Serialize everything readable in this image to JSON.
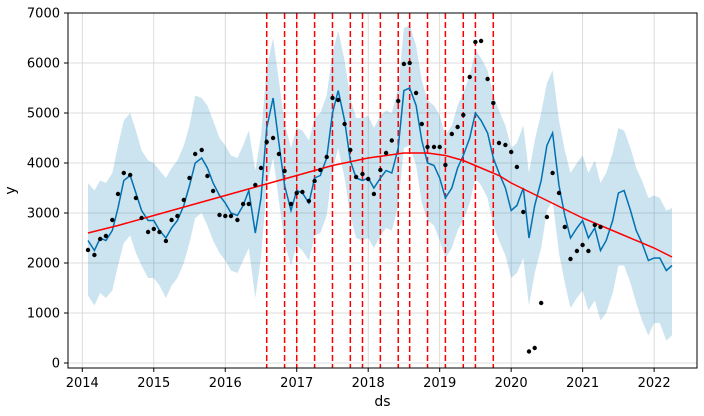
{
  "chart_data": {
    "type": "line",
    "title": "",
    "xlabel": "ds",
    "ylabel": "y",
    "xlim": [
      2013.8,
      2022.6
    ],
    "ylim": [
      -100,
      7000
    ],
    "grid": true,
    "x_ticks": [
      2014,
      2015,
      2016,
      2017,
      2018,
      2019,
      2020,
      2021,
      2022
    ],
    "x_tick_labels": [
      "2014",
      "2015",
      "2016",
      "2017",
      "2018",
      "2019",
      "2020",
      "2021",
      "2022"
    ],
    "y_ticks": [
      0,
      1000,
      2000,
      3000,
      4000,
      5000,
      6000,
      7000
    ],
    "y_tick_labels": [
      "0",
      "1000",
      "2000",
      "3000",
      "4000",
      "5000",
      "6000",
      "7000"
    ],
    "colors": {
      "forecast_line": "#0072b2",
      "uncertainty_band": "#0072b2",
      "trend_line": "#ff0000",
      "changepoints": "#ff0000",
      "observed_points": "#000000",
      "grid": "#d3d3d3"
    },
    "series": [
      {
        "role": "observed",
        "style": "points",
        "x": [
          2014.08,
          2014.17,
          2014.25,
          2014.33,
          2014.42,
          2014.5,
          2014.58,
          2014.67,
          2014.75,
          2014.83,
          2014.92,
          2015.0,
          2015.08,
          2015.17,
          2015.25,
          2015.33,
          2015.42,
          2015.5,
          2015.58,
          2015.67,
          2015.75,
          2015.83,
          2015.92,
          2016.0,
          2016.08,
          2016.17,
          2016.25,
          2016.33,
          2016.42,
          2016.5,
          2016.58,
          2016.67,
          2016.75,
          2016.83,
          2016.92,
          2017.0,
          2017.08,
          2017.17,
          2017.25,
          2017.33,
          2017.42,
          2017.5,
          2017.58,
          2017.67,
          2017.75,
          2017.83,
          2017.92,
          2018.0,
          2018.08,
          2018.17,
          2018.25,
          2018.33,
          2018.42,
          2018.5,
          2018.58,
          2018.67,
          2018.75,
          2018.83,
          2018.92,
          2019.0,
          2019.08,
          2019.17,
          2019.25,
          2019.33,
          2019.42,
          2019.5,
          2019.58,
          2019.67,
          2019.75,
          2019.83,
          2019.92,
          2020.0,
          2020.08,
          2020.17,
          2020.25,
          2020.33,
          2020.42,
          2020.5,
          2020.58,
          2020.67,
          2020.75,
          2020.83,
          2020.92,
          2021.0,
          2021.08,
          2021.17,
          2021.25
        ],
        "y": [
          2260,
          2160,
          2480,
          2540,
          2860,
          3380,
          3800,
          3760,
          3300,
          2900,
          2620,
          2680,
          2620,
          2440,
          2860,
          2940,
          3260,
          3700,
          4180,
          4260,
          3740,
          3440,
          2960,
          2940,
          2940,
          2860,
          3180,
          3180,
          3560,
          3900,
          4420,
          4500,
          4180,
          3840,
          3180,
          3400,
          3420,
          3240,
          3640,
          3860,
          4120,
          5300,
          5260,
          4780,
          4260,
          3720,
          3780,
          3680,
          3380,
          3860,
          4200,
          4450,
          5240,
          5980,
          6000,
          5400,
          4780,
          4320,
          4320,
          4320,
          3960,
          4580,
          4720,
          4960,
          5720,
          6420,
          6440,
          5680,
          5200,
          4400,
          4360,
          4220,
          3920,
          3020,
          230,
          300,
          1200,
          2920,
          3800,
          3400,
          2720,
          2080,
          2240,
          2360,
          2240,
          2760,
          2720
        ]
      },
      {
        "role": "forecast",
        "style": "line",
        "x": [
          2014.08,
          2014.17,
          2014.25,
          2014.33,
          2014.42,
          2014.5,
          2014.58,
          2014.67,
          2014.75,
          2014.83,
          2014.92,
          2015.0,
          2015.08,
          2015.17,
          2015.25,
          2015.33,
          2015.42,
          2015.5,
          2015.58,
          2015.67,
          2015.75,
          2015.83,
          2015.92,
          2016.0,
          2016.08,
          2016.17,
          2016.25,
          2016.33,
          2016.42,
          2016.5,
          2016.58,
          2016.67,
          2016.75,
          2016.83,
          2016.92,
          2017.0,
          2017.08,
          2017.17,
          2017.25,
          2017.33,
          2017.42,
          2017.5,
          2017.58,
          2017.67,
          2017.75,
          2017.83,
          2017.92,
          2018.0,
          2018.08,
          2018.17,
          2018.25,
          2018.33,
          2018.42,
          2018.5,
          2018.58,
          2018.67,
          2018.75,
          2018.83,
          2018.92,
          2019.0,
          2019.08,
          2019.17,
          2019.25,
          2019.33,
          2019.42,
          2019.5,
          2019.58,
          2019.67,
          2019.75,
          2019.83,
          2019.92,
          2020.0,
          2020.08,
          2020.17,
          2020.25,
          2020.33,
          2020.42,
          2020.5,
          2020.58,
          2020.67,
          2020.75,
          2020.83,
          2020.92,
          2021.0,
          2021.08,
          2021.17,
          2021.25,
          2021.33,
          2021.42,
          2021.5,
          2021.58,
          2021.67,
          2021.75,
          2021.83,
          2021.92,
          2022.0,
          2022.08,
          2022.17,
          2022.25
        ],
        "y": [
          2450,
          2250,
          2500,
          2450,
          2650,
          3100,
          3650,
          3750,
          3400,
          3050,
          2850,
          2850,
          2650,
          2500,
          2700,
          2850,
          3150,
          3550,
          4000,
          4100,
          3900,
          3600,
          3350,
          3200,
          3000,
          2950,
          3150,
          3450,
          2600,
          3300,
          4700,
          5300,
          4400,
          3550,
          3050,
          3450,
          3400,
          3200,
          3700,
          3750,
          4100,
          5000,
          5450,
          4850,
          4050,
          3700,
          3650,
          3700,
          3500,
          3700,
          3850,
          3800,
          4300,
          5450,
          5500,
          5150,
          4450,
          4000,
          3950,
          3700,
          3300,
          3500,
          3900,
          4150,
          4500,
          5000,
          4850,
          4600,
          4100,
          3800,
          3500,
          3050,
          3150,
          3500,
          2500,
          3150,
          3650,
          4350,
          4600,
          3550,
          2950,
          2500,
          2700,
          2850,
          2500,
          2700,
          2250,
          2450,
          2850,
          3400,
          3450,
          3050,
          2650,
          2400,
          2050,
          2100,
          2100,
          1850,
          1950
        ]
      },
      {
        "role": "trend",
        "style": "line",
        "x": [
          2014.08,
          2014.5,
          2015.0,
          2015.5,
          2016.0,
          2016.5,
          2017.0,
          2017.5,
          2018.0,
          2018.5,
          2018.83,
          2019.08,
          2019.33,
          2019.58,
          2019.83,
          2020.0,
          2020.5,
          2021.0,
          2021.5,
          2022.0,
          2022.25
        ],
        "y": [
          2600,
          2750,
          2950,
          3150,
          3350,
          3550,
          3750,
          3950,
          4100,
          4200,
          4200,
          4150,
          4050,
          3900,
          3750,
          3600,
          3250,
          2900,
          2600,
          2300,
          2120
        ]
      },
      {
        "role": "uncertainty",
        "style": "band",
        "x": [
          2014.08,
          2014.17,
          2014.25,
          2014.33,
          2014.42,
          2014.5,
          2014.58,
          2014.67,
          2014.75,
          2014.83,
          2014.92,
          2015.0,
          2015.08,
          2015.17,
          2015.25,
          2015.33,
          2015.42,
          2015.5,
          2015.58,
          2015.67,
          2015.75,
          2015.83,
          2015.92,
          2016.0,
          2016.08,
          2016.17,
          2016.25,
          2016.33,
          2016.42,
          2016.5,
          2016.58,
          2016.67,
          2016.75,
          2016.83,
          2016.92,
          2017.0,
          2017.08,
          2017.17,
          2017.25,
          2017.33,
          2017.42,
          2017.5,
          2017.58,
          2017.67,
          2017.75,
          2017.83,
          2017.92,
          2018.0,
          2018.08,
          2018.17,
          2018.25,
          2018.33,
          2018.42,
          2018.5,
          2018.58,
          2018.67,
          2018.75,
          2018.83,
          2018.92,
          2019.0,
          2019.08,
          2019.17,
          2019.25,
          2019.33,
          2019.42,
          2019.5,
          2019.58,
          2019.67,
          2019.75,
          2019.83,
          2019.92,
          2020.0,
          2020.08,
          2020.17,
          2020.25,
          2020.33,
          2020.42,
          2020.5,
          2020.58,
          2020.67,
          2020.75,
          2020.83,
          2020.92,
          2021.0,
          2021.08,
          2021.17,
          2021.25,
          2021.33,
          2021.42,
          2021.5,
          2021.58,
          2021.67,
          2021.75,
          2021.83,
          2021.92,
          2022.0,
          2022.08,
          2022.17,
          2022.25
        ],
        "upper": [
          3600,
          3450,
          3650,
          3600,
          3800,
          4350,
          4850,
          5000,
          4650,
          4250,
          4050,
          4000,
          3850,
          3700,
          3900,
          4050,
          4350,
          4750,
          5350,
          5300,
          5150,
          4850,
          4500,
          4350,
          4150,
          4100,
          4350,
          4650,
          3850,
          4550,
          5900,
          6500,
          5650,
          4800,
          4300,
          4700,
          4650,
          4450,
          4900,
          5000,
          5350,
          6200,
          6650,
          6050,
          5300,
          4900,
          4900,
          4950,
          4700,
          4950,
          5050,
          5000,
          5500,
          6700,
          6750,
          6350,
          5650,
          5250,
          5150,
          4950,
          4550,
          4750,
          5150,
          5400,
          5750,
          6250,
          6100,
          5850,
          5350,
          5050,
          4750,
          4300,
          4400,
          4750,
          3800,
          4450,
          5000,
          5600,
          5850,
          4850,
          4250,
          3800,
          4000,
          4150,
          3800,
          4050,
          3600,
          3800,
          4200,
          4700,
          4650,
          4300,
          3900,
          3650,
          3300,
          3350,
          3300,
          3050,
          3100
        ],
        "lower": [
          1350,
          1150,
          1400,
          1300,
          1450,
          1950,
          2400,
          2550,
          2200,
          1950,
          1700,
          1700,
          1550,
          1300,
          1550,
          1700,
          2000,
          2400,
          2900,
          3000,
          2750,
          2450,
          2200,
          2050,
          1850,
          1800,
          2050,
          2300,
          1300,
          2100,
          3550,
          4100,
          3250,
          2400,
          1950,
          2350,
          2250,
          2050,
          2550,
          2600,
          2950,
          3850,
          4300,
          3700,
          2950,
          2500,
          2450,
          2500,
          2300,
          2550,
          2700,
          2650,
          3150,
          4300,
          4350,
          3950,
          3200,
          2850,
          2750,
          2450,
          2100,
          2300,
          2650,
          2850,
          3200,
          3700,
          3550,
          3300,
          2750,
          2450,
          2150,
          1700,
          1800,
          2100,
          1150,
          1800,
          2300,
          3050,
          3250,
          2200,
          1600,
          1100,
          1300,
          1450,
          1050,
          1250,
          850,
          1000,
          1400,
          1950,
          1950,
          1600,
          1200,
          850,
          550,
          800,
          800,
          450,
          550
        ]
      }
    ],
    "changepoints": [
      2016.58,
      2016.83,
      2017.0,
      2017.25,
      2017.5,
      2017.75,
      2017.92,
      2018.17,
      2018.42,
      2018.58,
      2018.83,
      2019.08,
      2019.33,
      2019.5,
      2019.75
    ]
  }
}
